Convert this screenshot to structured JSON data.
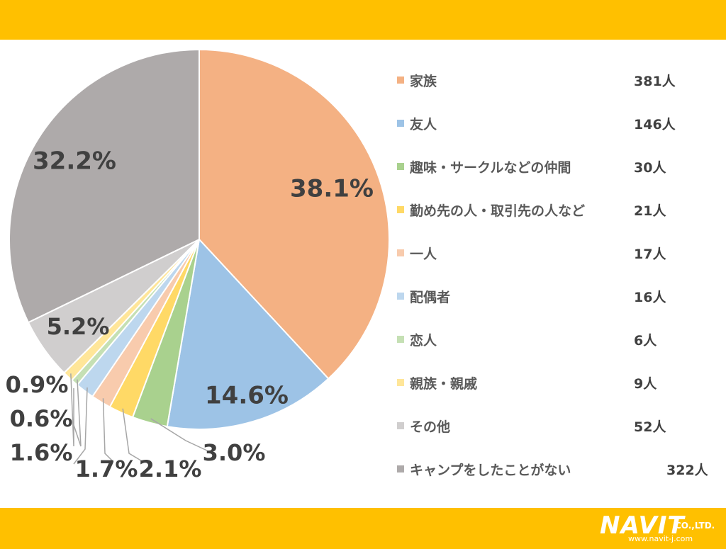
{
  "chart_data": {
    "type": "pie",
    "slices": [
      {
        "label": "家族",
        "count": "381人",
        "value": 38.1,
        "pct_label": "38.1%",
        "color": "#F4B183"
      },
      {
        "label": "友人",
        "count": "146人",
        "value": 14.6,
        "pct_label": "14.6%",
        "color": "#9DC3E6"
      },
      {
        "label": "趣味・サークルなどの仲間",
        "count": "30人",
        "value": 3.0,
        "pct_label": "3.0%",
        "color": "#A9D18E"
      },
      {
        "label": "勤め先の人・取引先の人など",
        "count": "21人",
        "value": 2.1,
        "pct_label": "2.1%",
        "color": "#FFD966"
      },
      {
        "label": "一人",
        "count": "17人",
        "value": 1.7,
        "pct_label": "1.7%",
        "color": "#F8CBAD"
      },
      {
        "label": "配偶者",
        "count": "16人",
        "value": 1.6,
        "pct_label": "1.6%",
        "color": "#BDD7EE"
      },
      {
        "label": "恋人",
        "count": "6人",
        "value": 0.6,
        "pct_label": "0.6%",
        "color": "#C5E0B4"
      },
      {
        "label": "親族・親戚",
        "count": "9人",
        "value": 0.9,
        "pct_label": "0.9%",
        "color": "#FFE699"
      },
      {
        "label": "その他",
        "count": "52人",
        "value": 5.2,
        "pct_label": "5.2%",
        "color": "#D0CECE"
      },
      {
        "label": "キャンプをしたことがない",
        "count": "322人",
        "value": 32.2,
        "pct_label": "32.2%",
        "color": "#AEAAAA"
      }
    ],
    "legend_position": "right"
  },
  "colors": {
    "bar": "#FFC000",
    "text": "#404040"
  },
  "logo": {
    "main": "NAVIT",
    "suffix": "CO.,LTD.",
    "url": "www.navit-j.com"
  }
}
